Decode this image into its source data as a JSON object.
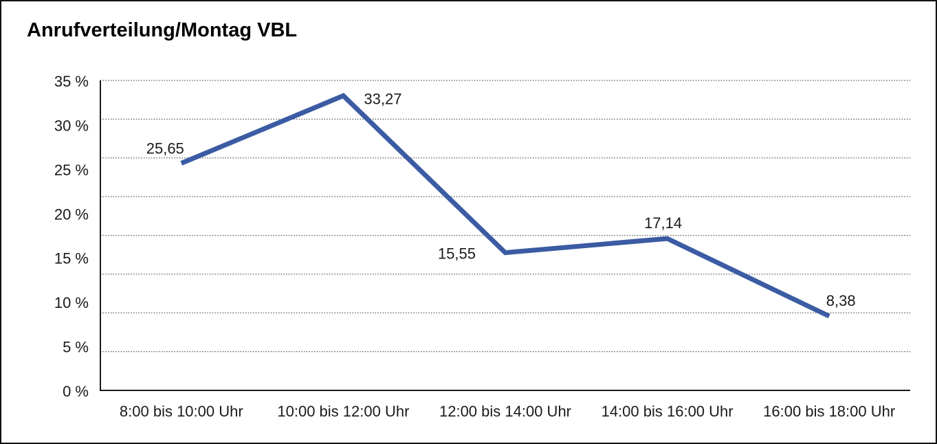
{
  "chart_data": {
    "type": "line",
    "title": "Anrufverteilung/Montag VBL",
    "categories": [
      "8:00 bis 10:00 Uhr",
      "10:00 bis 12:00 Uhr",
      "12:00 bis 14:00 Uhr",
      "14:00 bis 16:00 Uhr",
      "16:00 bis 18:00 Uhr"
    ],
    "values": [
      25.65,
      33.27,
      15.55,
      17.14,
      8.38
    ],
    "value_labels": [
      "25,65",
      "33,27",
      "15,55",
      "17,14",
      "8,38"
    ],
    "label_placements": [
      "above-left",
      "right",
      "left",
      "above",
      "above-right"
    ],
    "xlabel": "",
    "ylabel": "",
    "ylim": [
      0,
      35
    ],
    "y_axis": {
      "tick_labels": [
        "35 %",
        "30 %",
        "25 %",
        "20 %",
        "15 %",
        "10 %",
        "5 %",
        "0 %"
      ],
      "unit": "%"
    },
    "grid": {
      "style": "dotted",
      "orientation": "horizontal",
      "divisions": 8
    },
    "legend": "none",
    "line_color": "#3B5BA3",
    "text_color": "#1a1a1a"
  }
}
